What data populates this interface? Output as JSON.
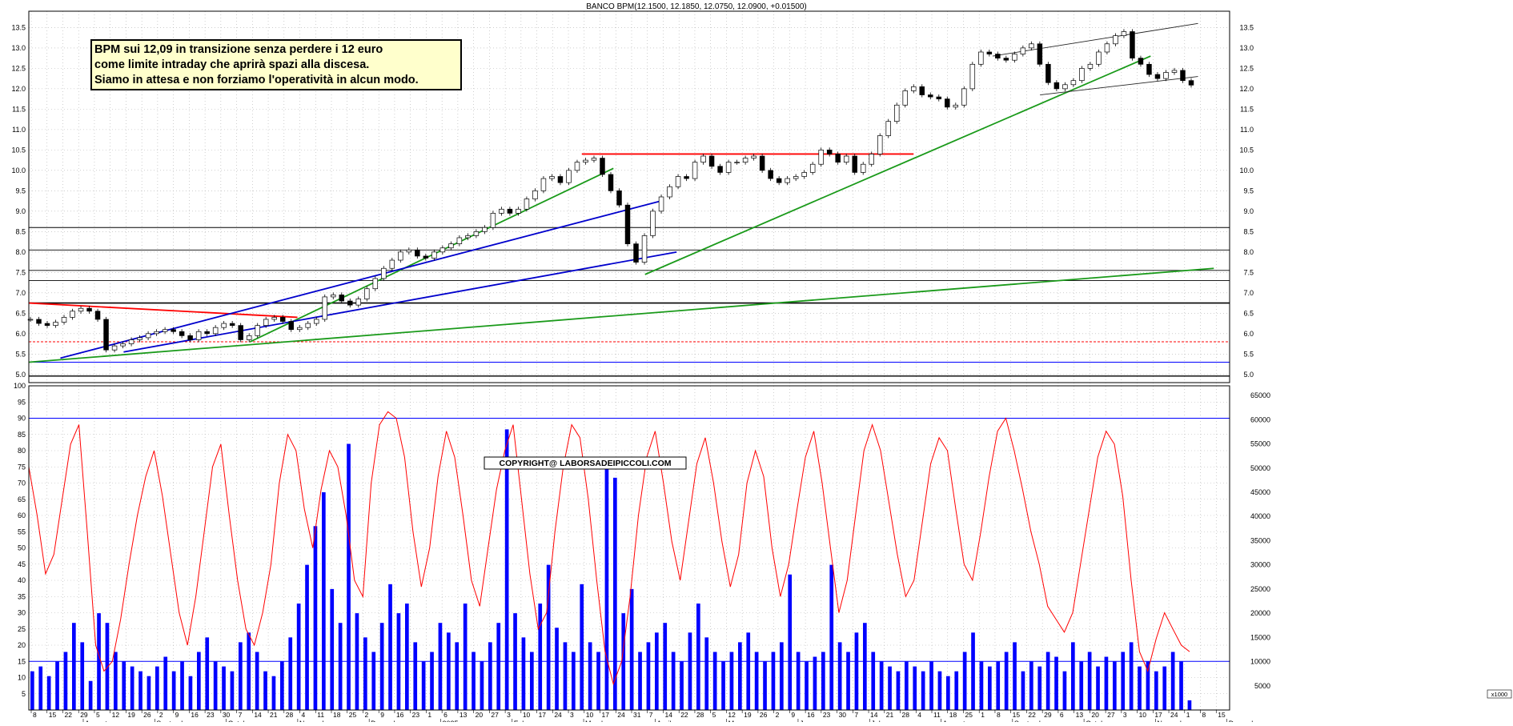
{
  "header": {
    "title": "BANCO BPM(12.1500, 12.1850, 12.0750, 12.0900, +0.01500)"
  },
  "annotation": {
    "lines": [
      "BPM sui 12,09 in transizione senza perdere i 12 euro",
      "come limite intraday che aprirà spazi alla discesa.",
      "Siamo in attesa e non forziamo l'operatività in alcun modo."
    ]
  },
  "copyright": "COPYRIGHT@ LABORSADEIPICCOLI.COM",
  "volume_multiplier": "x1000",
  "colors": {
    "price": "#000000",
    "oscillator": "#ff0000",
    "volume": "#0000ff",
    "grid": "#b0b0b0"
  },
  "chart_data": [
    {
      "type": "candlestick",
      "ylim": [
        4.8,
        13.9
      ],
      "yticks": [
        "5.0",
        "5.5",
        "6.0",
        "6.5",
        "7.0",
        "7.5",
        "8.0",
        "8.5",
        "9.0",
        "9.5",
        "10.0",
        "10.5",
        "11.0",
        "11.5",
        "12.0",
        "12.5",
        "13.0",
        "13.5"
      ],
      "series": [
        {
          "values": [
            6.35,
            6.25,
            6.2,
            6.28,
            6.4,
            6.55,
            6.62,
            6.55,
            6.35,
            5.6,
            5.7,
            5.75,
            5.85,
            5.9,
            6.0,
            6.05,
            6.1,
            6.05,
            5.95,
            5.85,
            6.05,
            6.0,
            6.15,
            6.25,
            6.2,
            5.85,
            5.95,
            6.2,
            6.35,
            6.4,
            6.3,
            6.1,
            6.15,
            6.25,
            6.35,
            6.9,
            6.95,
            6.8,
            6.7,
            6.85,
            7.1,
            7.35,
            7.6,
            7.8,
            8.0,
            8.05,
            7.9,
            7.85,
            8.0,
            8.1,
            8.2,
            8.35,
            8.4,
            8.5,
            8.6,
            8.95,
            9.05,
            8.95,
            9.05,
            9.3,
            9.5,
            9.8,
            9.85,
            9.7,
            10.0,
            10.2,
            10.25,
            10.3,
            9.9,
            9.5,
            9.15,
            8.2,
            7.75,
            8.4,
            9.0,
            9.35,
            9.6,
            9.85,
            9.8,
            10.2,
            10.35,
            10.1,
            9.95,
            10.2,
            10.2,
            10.3,
            10.35,
            10.0,
            9.8,
            9.7,
            9.8,
            9.85,
            9.95,
            10.15,
            10.5,
            10.4,
            10.2,
            10.35,
            9.95,
            10.15,
            10.4,
            10.85,
            11.2,
            11.6,
            11.95,
            12.05,
            11.85,
            11.8,
            11.75,
            11.55,
            11.6,
            12.0,
            12.6,
            12.9,
            12.85,
            12.75,
            12.7,
            12.85,
            13.0,
            13.1,
            12.6,
            12.15,
            12.0,
            12.1,
            12.2,
            12.5,
            12.6,
            12.9,
            13.1,
            13.3,
            13.4,
            12.75,
            12.6,
            12.35,
            12.25,
            12.4,
            12.45,
            12.2,
            12.09
          ]
        }
      ],
      "reference_levels": [
        5.3,
        5.8,
        6.75,
        7.3,
        7.55,
        8.05,
        8.6
      ],
      "trendlines": [
        {
          "color": "red",
          "from": [
            "2024-07-08",
            6.75
          ],
          "to": [
            "2024-11-04",
            6.4
          ]
        },
        {
          "color": "red",
          "from": [
            "2025-03-10",
            10.4
          ],
          "to": [
            "2025-08-04",
            10.4
          ]
        },
        {
          "color": "green",
          "from": [
            "2024-07-08",
            5.3
          ],
          "to": [
            "2025-12-15",
            7.6
          ]
        },
        {
          "color": "green",
          "from": [
            "2024-10-14",
            5.8
          ],
          "to": [
            "2025-03-24",
            10.05
          ]
        },
        {
          "color": "green",
          "from": [
            "2025-04-07",
            7.45
          ],
          "to": [
            "2025-11-17",
            12.8
          ]
        },
        {
          "color": "blue",
          "from": [
            "2024-07-22",
            5.4
          ],
          "to": [
            "2025-04-14",
            9.25
          ]
        },
        {
          "color": "blue",
          "from": [
            "2024-08-19",
            5.55
          ],
          "to": [
            "2025-04-21",
            8.0
          ]
        },
        {
          "color": "black",
          "from": [
            "2025-09-08",
            12.8
          ],
          "to": [
            "2025-12-08",
            13.6
          ]
        },
        {
          "color": "black",
          "from": [
            "2025-09-29",
            11.85
          ],
          "to": [
            "2025-12-08",
            12.3
          ]
        }
      ]
    },
    {
      "type": "line+bar",
      "oscillator_ylim": [
        0,
        100
      ],
      "oscillator_ticks": [
        "5",
        "10",
        "15",
        "20",
        "25",
        "30",
        "35",
        "40",
        "45",
        "50",
        "55",
        "60",
        "65",
        "70",
        "75",
        "80",
        "85",
        "90",
        "95",
        "100"
      ],
      "volume_ylim": [
        0,
        67000
      ],
      "volume_ticks": [
        "5000",
        "10000",
        "15000",
        "20000",
        "25000",
        "30000",
        "35000",
        "40000",
        "45000",
        "50000",
        "55000",
        "60000",
        "65000"
      ],
      "reference_levels": [
        90,
        15
      ],
      "series": [
        {
          "name": "",
          "values": [
            75,
            60,
            42,
            48,
            65,
            82,
            88,
            55,
            20,
            12,
            15,
            28,
            45,
            60,
            72,
            80,
            66,
            48,
            30,
            20,
            35,
            55,
            75,
            82,
            60,
            40,
            25,
            20,
            30,
            45,
            70,
            85,
            80,
            62,
            50,
            68,
            80,
            75,
            60,
            40,
            35,
            70,
            88,
            92,
            90,
            78,
            55,
            38,
            50,
            72,
            86,
            78,
            60,
            40,
            32,
            50,
            68,
            80,
            88,
            65,
            42,
            25,
            30,
            55,
            75,
            88,
            84,
            65,
            40,
            18,
            8,
            15,
            35,
            60,
            78,
            86,
            70,
            52,
            40,
            58,
            76,
            84,
            70,
            52,
            38,
            48,
            70,
            80,
            72,
            50,
            35,
            45,
            62,
            78,
            86,
            70,
            50,
            30,
            40,
            60,
            80,
            88,
            80,
            64,
            48,
            35,
            40,
            58,
            76,
            84,
            80,
            62,
            45,
            40,
            55,
            72,
            86,
            90,
            80,
            68,
            55,
            45,
            32,
            28,
            24,
            30,
            46,
            62,
            78,
            86,
            82,
            66,
            40,
            18,
            12,
            22,
            30,
            25,
            20,
            18
          ]
        },
        {
          "name": "",
          "values": [
            8,
            9,
            7,
            10,
            12,
            18,
            14,
            6,
            20,
            18,
            12,
            10,
            9,
            8,
            7,
            9,
            11,
            8,
            10,
            7,
            12,
            15,
            10,
            9,
            8,
            14,
            16,
            12,
            8,
            7,
            10,
            15,
            22,
            30,
            38,
            45,
            25,
            18,
            55,
            20,
            15,
            12,
            18,
            26,
            20,
            22,
            14,
            10,
            12,
            18,
            16,
            14,
            22,
            12,
            10,
            14,
            18,
            58,
            20,
            15,
            12,
            22,
            30,
            17,
            14,
            12,
            26,
            14,
            12,
            52,
            48,
            20,
            25,
            12,
            14,
            16,
            18,
            12,
            10,
            16,
            22,
            15,
            12,
            10,
            12,
            14,
            16,
            12,
            10,
            12,
            14,
            28,
            12,
            10,
            11,
            12,
            30,
            14,
            12,
            16,
            18,
            12,
            10,
            9,
            8,
            10,
            9,
            8,
            10,
            8,
            7,
            8,
            12,
            16,
            10,
            9,
            10,
            12,
            14,
            8,
            10,
            9,
            12,
            11,
            8,
            14,
            10,
            12,
            9,
            11,
            10,
            12,
            14,
            9,
            10,
            8,
            9,
            12,
            10,
            2
          ]
        }
      ]
    }
  ],
  "x_axis": {
    "day_labels": [
      "8",
      "15",
      "22",
      "29",
      "5",
      "12",
      "19",
      "26",
      "2",
      "9",
      "16",
      "23",
      "30",
      "7",
      "14",
      "21",
      "28",
      "4",
      "11",
      "18",
      "25",
      "2",
      "9",
      "16",
      "23",
      "1",
      "6",
      "13",
      "20",
      "27",
      "3",
      "10",
      "17",
      "24",
      "3",
      "10",
      "17",
      "24",
      "31",
      "7",
      "14",
      "22",
      "28",
      "5",
      "12",
      "19",
      "26",
      "2",
      "9",
      "16",
      "23",
      "30",
      "7",
      "14",
      "21",
      "28",
      "4",
      "11",
      "18",
      "25",
      "1",
      "8",
      "15",
      "22",
      "29",
      "6",
      "13",
      "20",
      "27",
      "3",
      "10",
      "17",
      "24",
      "1",
      "8",
      "15"
    ],
    "month_labels": [
      "August",
      "September",
      "October",
      "November",
      "December",
      "2025",
      "February",
      "March",
      "April",
      "May",
      "June",
      "July",
      "August",
      "September",
      "October",
      "November",
      "December"
    ]
  }
}
